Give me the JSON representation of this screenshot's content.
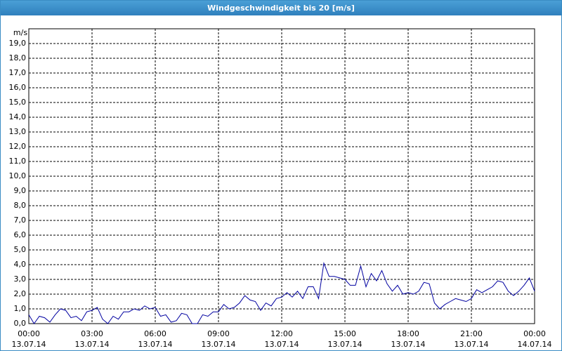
{
  "chart_data": {
    "type": "line",
    "title": "Windgeschwindigkeit bis 20 [m/s]",
    "ylabel": "m/s",
    "x": [
      0,
      0.25,
      0.5,
      0.75,
      1,
      1.25,
      1.5,
      1.75,
      2,
      2.25,
      2.5,
      2.75,
      3,
      3.25,
      3.5,
      3.75,
      4,
      4.25,
      4.5,
      4.75,
      5,
      5.25,
      5.5,
      5.75,
      6,
      6.25,
      6.5,
      6.75,
      7,
      7.25,
      7.5,
      7.75,
      8,
      8.25,
      8.5,
      8.75,
      9,
      9.25,
      9.5,
      9.75,
      10,
      10.25,
      10.5,
      10.75,
      11,
      11.25,
      11.5,
      11.75,
      12,
      12.25,
      12.5,
      12.75,
      13,
      13.25,
      13.5,
      13.75,
      14,
      14.25,
      14.5,
      14.75,
      15,
      15.25,
      15.5,
      15.75,
      16,
      16.25,
      16.5,
      16.75,
      17,
      17.25,
      17.5,
      17.75,
      18,
      18.25,
      18.5,
      18.75,
      19,
      19.25,
      19.5,
      19.75,
      20,
      20.25,
      20.5,
      20.75,
      21,
      21.25,
      21.5,
      21.75,
      22,
      22.25,
      22.5,
      22.75,
      23,
      23.25,
      23.5,
      23.75,
      24
    ],
    "values": [
      0.6,
      0,
      0.5,
      0.4,
      0.1,
      0.6,
      1.0,
      0.9,
      0.4,
      0.5,
      0.2,
      0.8,
      0.9,
      1.1,
      0.3,
      0,
      0.5,
      0.3,
      0.8,
      0.8,
      1.0,
      0.9,
      1.2,
      1.0,
      1.1,
      0.5,
      0.6,
      0.1,
      0.2,
      0.7,
      0.6,
      0,
      0,
      0.6,
      0.5,
      0.8,
      0.8,
      1.3,
      1.0,
      1.1,
      1.4,
      1.9,
      1.6,
      1.5,
      0.9,
      1.4,
      1.2,
      1.7,
      1.8,
      2.1,
      1.8,
      2.2,
      1.7,
      2.5,
      2.5,
      1.7,
      4.1,
      3.2,
      3.2,
      3.1,
      3.0,
      2.6,
      2.6,
      3.9,
      2.5,
      3.4,
      2.9,
      3.6,
      2.7,
      2.2,
      2.6,
      2.0,
      2.1,
      2.0,
      2.2,
      2.8,
      2.7,
      1.4,
      1.0,
      1.3,
      1.5,
      1.7,
      1.6,
      1.5,
      1.7,
      2.3,
      2.1,
      2.3,
      2.5,
      2.9,
      2.8,
      2.2,
      1.9,
      2.2,
      2.6,
      3.1,
      2.2
    ],
    "color": "#0000a0",
    "xlim": [
      0,
      24
    ],
    "xticks": [
      {
        "value": 0,
        "label": "00:00\n13.07.14"
      },
      {
        "value": 3,
        "label": "03:00\n13.07.14"
      },
      {
        "value": 6,
        "label": "06:00\n13.07.14"
      },
      {
        "value": 9,
        "label": "09:00\n13.07.14"
      },
      {
        "value": 12,
        "label": "12:00\n13.07.14"
      },
      {
        "value": 15,
        "label": "15:00\n13.07.14"
      },
      {
        "value": 18,
        "label": "18:00\n13.07.14"
      },
      {
        "value": 21,
        "label": "21:00\n13.07.14"
      },
      {
        "value": 24,
        "label": "00:00\n14.07.14"
      }
    ],
    "ylim": [
      0,
      20
    ],
    "yticks": [
      {
        "value": 0,
        "label": "0,0"
      },
      {
        "value": 1,
        "label": "1,0"
      },
      {
        "value": 2,
        "label": "2,0"
      },
      {
        "value": 3,
        "label": "3,0"
      },
      {
        "value": 4,
        "label": "4,0"
      },
      {
        "value": 5,
        "label": "5,0"
      },
      {
        "value": 6,
        "label": "6,0"
      },
      {
        "value": 7,
        "label": "7,0"
      },
      {
        "value": 8,
        "label": "8,0"
      },
      {
        "value": 9,
        "label": "9,0"
      },
      {
        "value": 10,
        "label": "10,0"
      },
      {
        "value": 11,
        "label": "11,0"
      },
      {
        "value": 12,
        "label": "12,0"
      },
      {
        "value": 13,
        "label": "13,0"
      },
      {
        "value": 14,
        "label": "14,0"
      },
      {
        "value": 15,
        "label": "15,0"
      },
      {
        "value": 16,
        "label": "16,0"
      },
      {
        "value": 17,
        "label": "17,0"
      },
      {
        "value": 18,
        "label": "18,0"
      },
      {
        "value": 19,
        "label": "19,0"
      }
    ],
    "grid": true
  }
}
